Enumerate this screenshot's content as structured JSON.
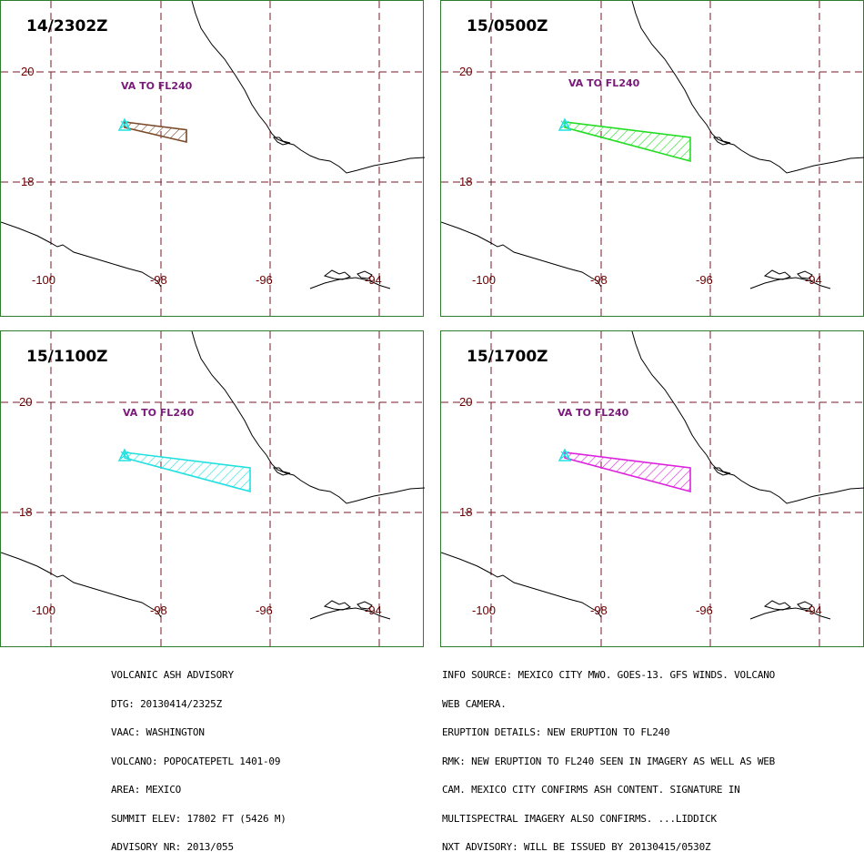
{
  "panels": [
    {
      "title": "14/2302Z",
      "va_label": "VA TO FL240",
      "color": "#7a4a2a",
      "extent": 0.3
    },
    {
      "title": "15/0500Z",
      "va_label": "VA TO FL240",
      "color": "#22dd22",
      "extent": 1.0
    },
    {
      "title": "15/1100Z",
      "va_label": "VA TO FL240",
      "color": "#22e0e0",
      "extent": 1.0
    },
    {
      "title": "15/1700Z",
      "va_label": "VA TO FL240",
      "color": "#dd22dd",
      "extent": 1.0
    }
  ],
  "lat_labels": [
    "20",
    "18"
  ],
  "lon_labels": [
    "-100",
    "-98",
    "-96",
    "-94"
  ],
  "volcano_icon": "triangle-icon",
  "advisory_left": [
    "VOLCANIC ASH ADVISORY",
    "DTG: 20130414/2325Z",
    "VAAC: WASHINGTON",
    "VOLCANO: POPOCATEPETL 1401-09",
    "AREA: MEXICO",
    "SUMMIT ELEV: 17802 FT (5426 M)",
    "ADVISORY NR: 2013/055"
  ],
  "advisory_right": [
    "INFO SOURCE: MEXICO CITY MWO. GOES-13. GFS WINDS. VOLCANO",
    "WEB CAMERA.",
    "ERUPTION DETAILS: NEW ERUPTION TO FL240",
    "RMK: NEW ERUPTION TO FL240 SEEN IN IMAGERY AS WELL AS WEB",
    "CAM. MEXICO CITY CONFIRMS ASH CONTENT. SIGNATURE IN",
    "MULTISPECTRAL IMAGERY ALSO CONFIRMS. ...LIDDICK",
    "NXT ADVISORY: WILL BE ISSUED BY 20130415/0530Z"
  ]
}
